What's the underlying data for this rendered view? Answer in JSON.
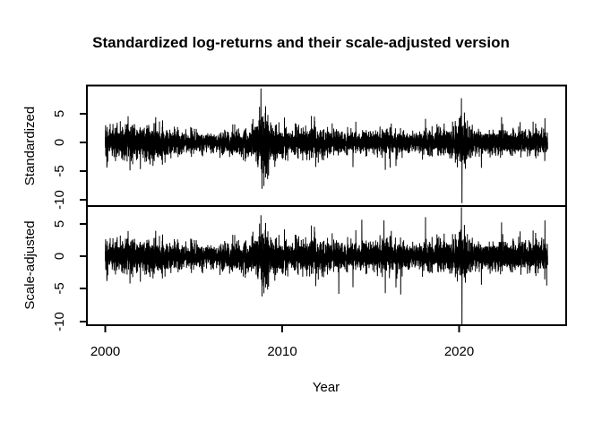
{
  "title": "Standardized log-returns and their scale-adjusted version",
  "chart_data": {
    "type": "line",
    "title": "Standardized log-returns and their scale-adjusted version",
    "xlabel": "Year",
    "background": "#ffffff",
    "line_color": "#000000",
    "axis_color": "#000000",
    "xlim": [
      1999.0,
      2026.1
    ],
    "x_data_range": [
      2000,
      2025
    ],
    "points_per_year": 261,
    "x_ticks": [
      2000,
      2010,
      2020
    ],
    "x_tick_labels": [
      "2000",
      "2010",
      "2020"
    ],
    "legend": "none",
    "grid": false,
    "panels": [
      {
        "name": "standardized",
        "ylabel": "Standardized",
        "ylim": [
          -11.1,
          9.9
        ],
        "y_ticks": [
          5,
          0,
          -5,
          -10
        ],
        "y_tick_labels": [
          "5",
          "0",
          "-5",
          "-10"
        ],
        "volatility_envelope": [
          [
            2000,
            1.15
          ],
          [
            2001.2,
            1.3
          ],
          [
            2002.8,
            1.5
          ],
          [
            2003.8,
            1.0
          ],
          [
            2005.5,
            0.72
          ],
          [
            2007.2,
            0.95
          ],
          [
            2008.3,
            1.25
          ],
          [
            2008.85,
            2.3
          ],
          [
            2009.7,
            1.25
          ],
          [
            2010.6,
            0.95
          ],
          [
            2011.7,
            1.4
          ],
          [
            2012.6,
            1.0
          ],
          [
            2013.6,
            0.82
          ],
          [
            2014.6,
            0.85
          ],
          [
            2015.9,
            1.05
          ],
          [
            2016.6,
            0.9
          ],
          [
            2017.6,
            0.78
          ],
          [
            2018.3,
            1.0
          ],
          [
            2019.2,
            0.9
          ],
          [
            2020.15,
            1.9
          ],
          [
            2020.9,
            1.05
          ],
          [
            2021.6,
            0.88
          ],
          [
            2022.5,
            1.1
          ],
          [
            2023.5,
            0.85
          ],
          [
            2024.9,
            1.05
          ],
          [
            2025,
            1.0
          ]
        ],
        "spikes": [
          [
            2001.4,
            -4.9
          ],
          [
            2002.85,
            4.4
          ],
          [
            2008.72,
            6.2
          ],
          [
            2008.8,
            9.4
          ],
          [
            2008.88,
            -5.4
          ],
          [
            2008.97,
            -7.6
          ],
          [
            2009.06,
            6.3
          ],
          [
            2011.65,
            4.6
          ],
          [
            2011.9,
            -4.3
          ],
          [
            2016.1,
            -4.4
          ],
          [
            2018.1,
            4.1
          ],
          [
            2020.13,
            7.7
          ],
          [
            2020.16,
            -10.6
          ],
          [
            2020.3,
            5.2
          ],
          [
            2022.4,
            4.4
          ],
          [
            2024.85,
            4.2
          ]
        ]
      },
      {
        "name": "scale-adjusted",
        "ylabel": "Scale-adjusted",
        "ylim": [
          -10.6,
          7.7
        ],
        "y_ticks": [
          5,
          0,
          -5,
          -10
        ],
        "y_tick_labels": [
          "5",
          "0",
          "-5",
          "-10"
        ],
        "volatility_envelope": [
          [
            2000,
            1.0
          ],
          [
            2001.2,
            1.1
          ],
          [
            2002.8,
            1.25
          ],
          [
            2003.8,
            0.95
          ],
          [
            2005.5,
            0.78
          ],
          [
            2007.2,
            1.0
          ],
          [
            2008.3,
            1.2
          ],
          [
            2008.85,
            1.75
          ],
          [
            2009.7,
            1.15
          ],
          [
            2010.6,
            0.95
          ],
          [
            2011.7,
            1.4
          ],
          [
            2012.6,
            1.05
          ],
          [
            2013.6,
            0.9
          ],
          [
            2014.6,
            0.95
          ],
          [
            2015.9,
            1.25
          ],
          [
            2016.6,
            1.05
          ],
          [
            2017.6,
            0.82
          ],
          [
            2018.3,
            1.05
          ],
          [
            2019.2,
            0.95
          ],
          [
            2020.15,
            1.65
          ],
          [
            2020.9,
            1.0
          ],
          [
            2021.6,
            0.9
          ],
          [
            2022.5,
            1.15
          ],
          [
            2023.5,
            0.92
          ],
          [
            2024.9,
            1.15
          ],
          [
            2025,
            1.1
          ]
        ],
        "spikes": [
          [
            2001.4,
            -4.2
          ],
          [
            2002.85,
            3.9
          ],
          [
            2008.72,
            5.0
          ],
          [
            2008.8,
            6.3
          ],
          [
            2008.88,
            -4.6
          ],
          [
            2008.97,
            -5.7
          ],
          [
            2009.06,
            5.1
          ],
          [
            2011.65,
            4.7
          ],
          [
            2011.9,
            -4.6
          ],
          [
            2013.2,
            -5.8
          ],
          [
            2014.5,
            5.6
          ],
          [
            2015.75,
            5.5
          ],
          [
            2016.7,
            -5.9
          ],
          [
            2018.1,
            6.0
          ],
          [
            2020.13,
            7.5
          ],
          [
            2020.16,
            -10.5
          ],
          [
            2020.3,
            4.8
          ],
          [
            2022.4,
            5.2
          ],
          [
            2024.85,
            5.5
          ],
          [
            2024.95,
            -4.5
          ]
        ]
      }
    ]
  }
}
